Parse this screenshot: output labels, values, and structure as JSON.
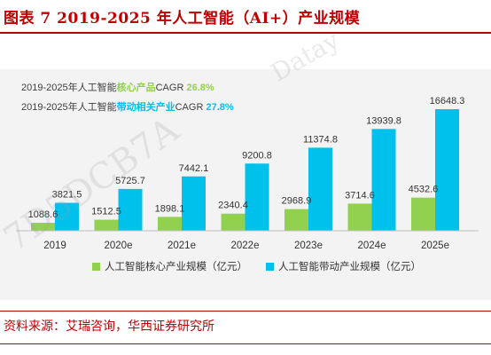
{
  "header": {
    "title": "图表 7 2019-2025 年人工智能（AI+）产业规模"
  },
  "watermarks": {
    "left": "7D5DCB7A",
    "right": "Datay"
  },
  "source": {
    "text": "资料来源：艾瑞咨询，华西证券研究所"
  },
  "chart_data": {
    "type": "bar",
    "categories": [
      "2019",
      "2020e",
      "2021e",
      "2022e",
      "2023e",
      "2024e",
      "2025e"
    ],
    "series": [
      {
        "name": "人工智能核心产业规模（亿元）",
        "color": "#92d050",
        "values": [
          1088.6,
          1512.5,
          1898.1,
          2340.4,
          2968.9,
          3714.6,
          4532.6
        ],
        "labels": [
          "1088.6",
          "1512.5",
          "1898.1",
          "2340.4",
          "2968.9",
          "3714.6",
          "4532.6"
        ]
      },
      {
        "name": "人工智能带动产业规模（亿元）",
        "color": "#00c1ec",
        "values": [
          3821.5,
          5725.7,
          7442.1,
          9200.8,
          11374.8,
          13939.8,
          16648.3
        ],
        "labels": [
          "3821.5",
          "5725.7",
          "7442.1",
          "9200.8",
          "11374.8",
          "13939.8",
          "16648.3"
        ]
      }
    ],
    "ylim": [
      0,
      17500
    ],
    "grid": false,
    "legend_position": "bottom",
    "annotations": [
      {
        "prefix": "2019-2025年人工智能",
        "highlight": "核心产品",
        "suffix": "CAGR",
        "value": "26.8%",
        "color": "#92d050"
      },
      {
        "prefix": "2019-2025年人工智能",
        "highlight": "带动相关产业",
        "suffix": "CAGR",
        "value": "27.8%",
        "color": "#00c1ec"
      }
    ]
  }
}
